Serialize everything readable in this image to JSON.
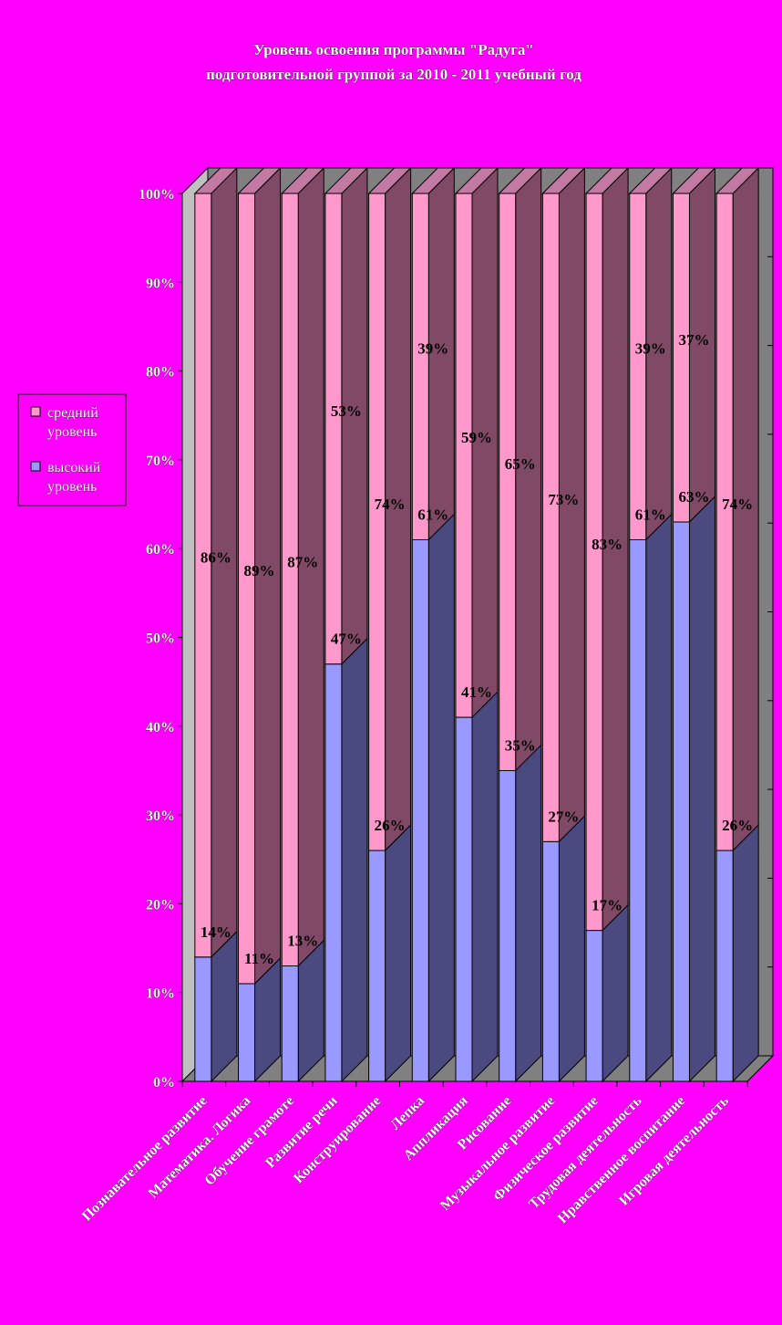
{
  "chart_data": {
    "type": "bar",
    "stacked": true,
    "three_d": true,
    "title": [
      "Уровень освоения программы \"Радуга\"",
      "подготовительной группой за 2010 - 2011 учебный год"
    ],
    "categories": [
      "Познавательное развитие",
      "Математика. Логика",
      "Обучение грамоте",
      "Развитие речи",
      "Конструирование",
      "Лепка",
      "Аппликация",
      "Рисование",
      "Музыкальное развитие",
      "Физическое развитие",
      "Трудовая деятельность",
      "Нравственное воспитание",
      "Игровая деятельность"
    ],
    "series": [
      {
        "name": "высокий уровень",
        "color": "#9999ff",
        "values": [
          14,
          11,
          13,
          47,
          26,
          61,
          41,
          35,
          27,
          17,
          61,
          63,
          26
        ],
        "labels": [
          "14%",
          "11%",
          "13%",
          "47%",
          "26%",
          "61%",
          "41%",
          "35%",
          "27%",
          "17%",
          "61%",
          "63%",
          "26%"
        ]
      },
      {
        "name": "средний уровень",
        "color": "#ff99cc",
        "values": [
          86,
          89,
          87,
          53,
          74,
          39,
          59,
          65,
          73,
          83,
          39,
          37,
          74
        ],
        "labels": [
          "86%",
          "89%",
          "87%",
          "53%",
          "74%",
          "39%",
          "59%",
          "65%",
          "73%",
          "83%",
          "39%",
          "37%",
          "74%"
        ]
      }
    ],
    "y_ticks": [
      "0%",
      "10%",
      "20%",
      "30%",
      "40%",
      "50%",
      "60%",
      "70%",
      "80%",
      "90%",
      "100%"
    ],
    "ylim": [
      0,
      100
    ],
    "legend": {
      "position": "left",
      "entries": [
        {
          "lines": [
            "средний",
            "уровень"
          ],
          "color": "#ff99cc"
        },
        {
          "lines": [
            "высокий",
            "уровень"
          ],
          "color": "#9999ff"
        }
      ]
    },
    "grid": false
  }
}
